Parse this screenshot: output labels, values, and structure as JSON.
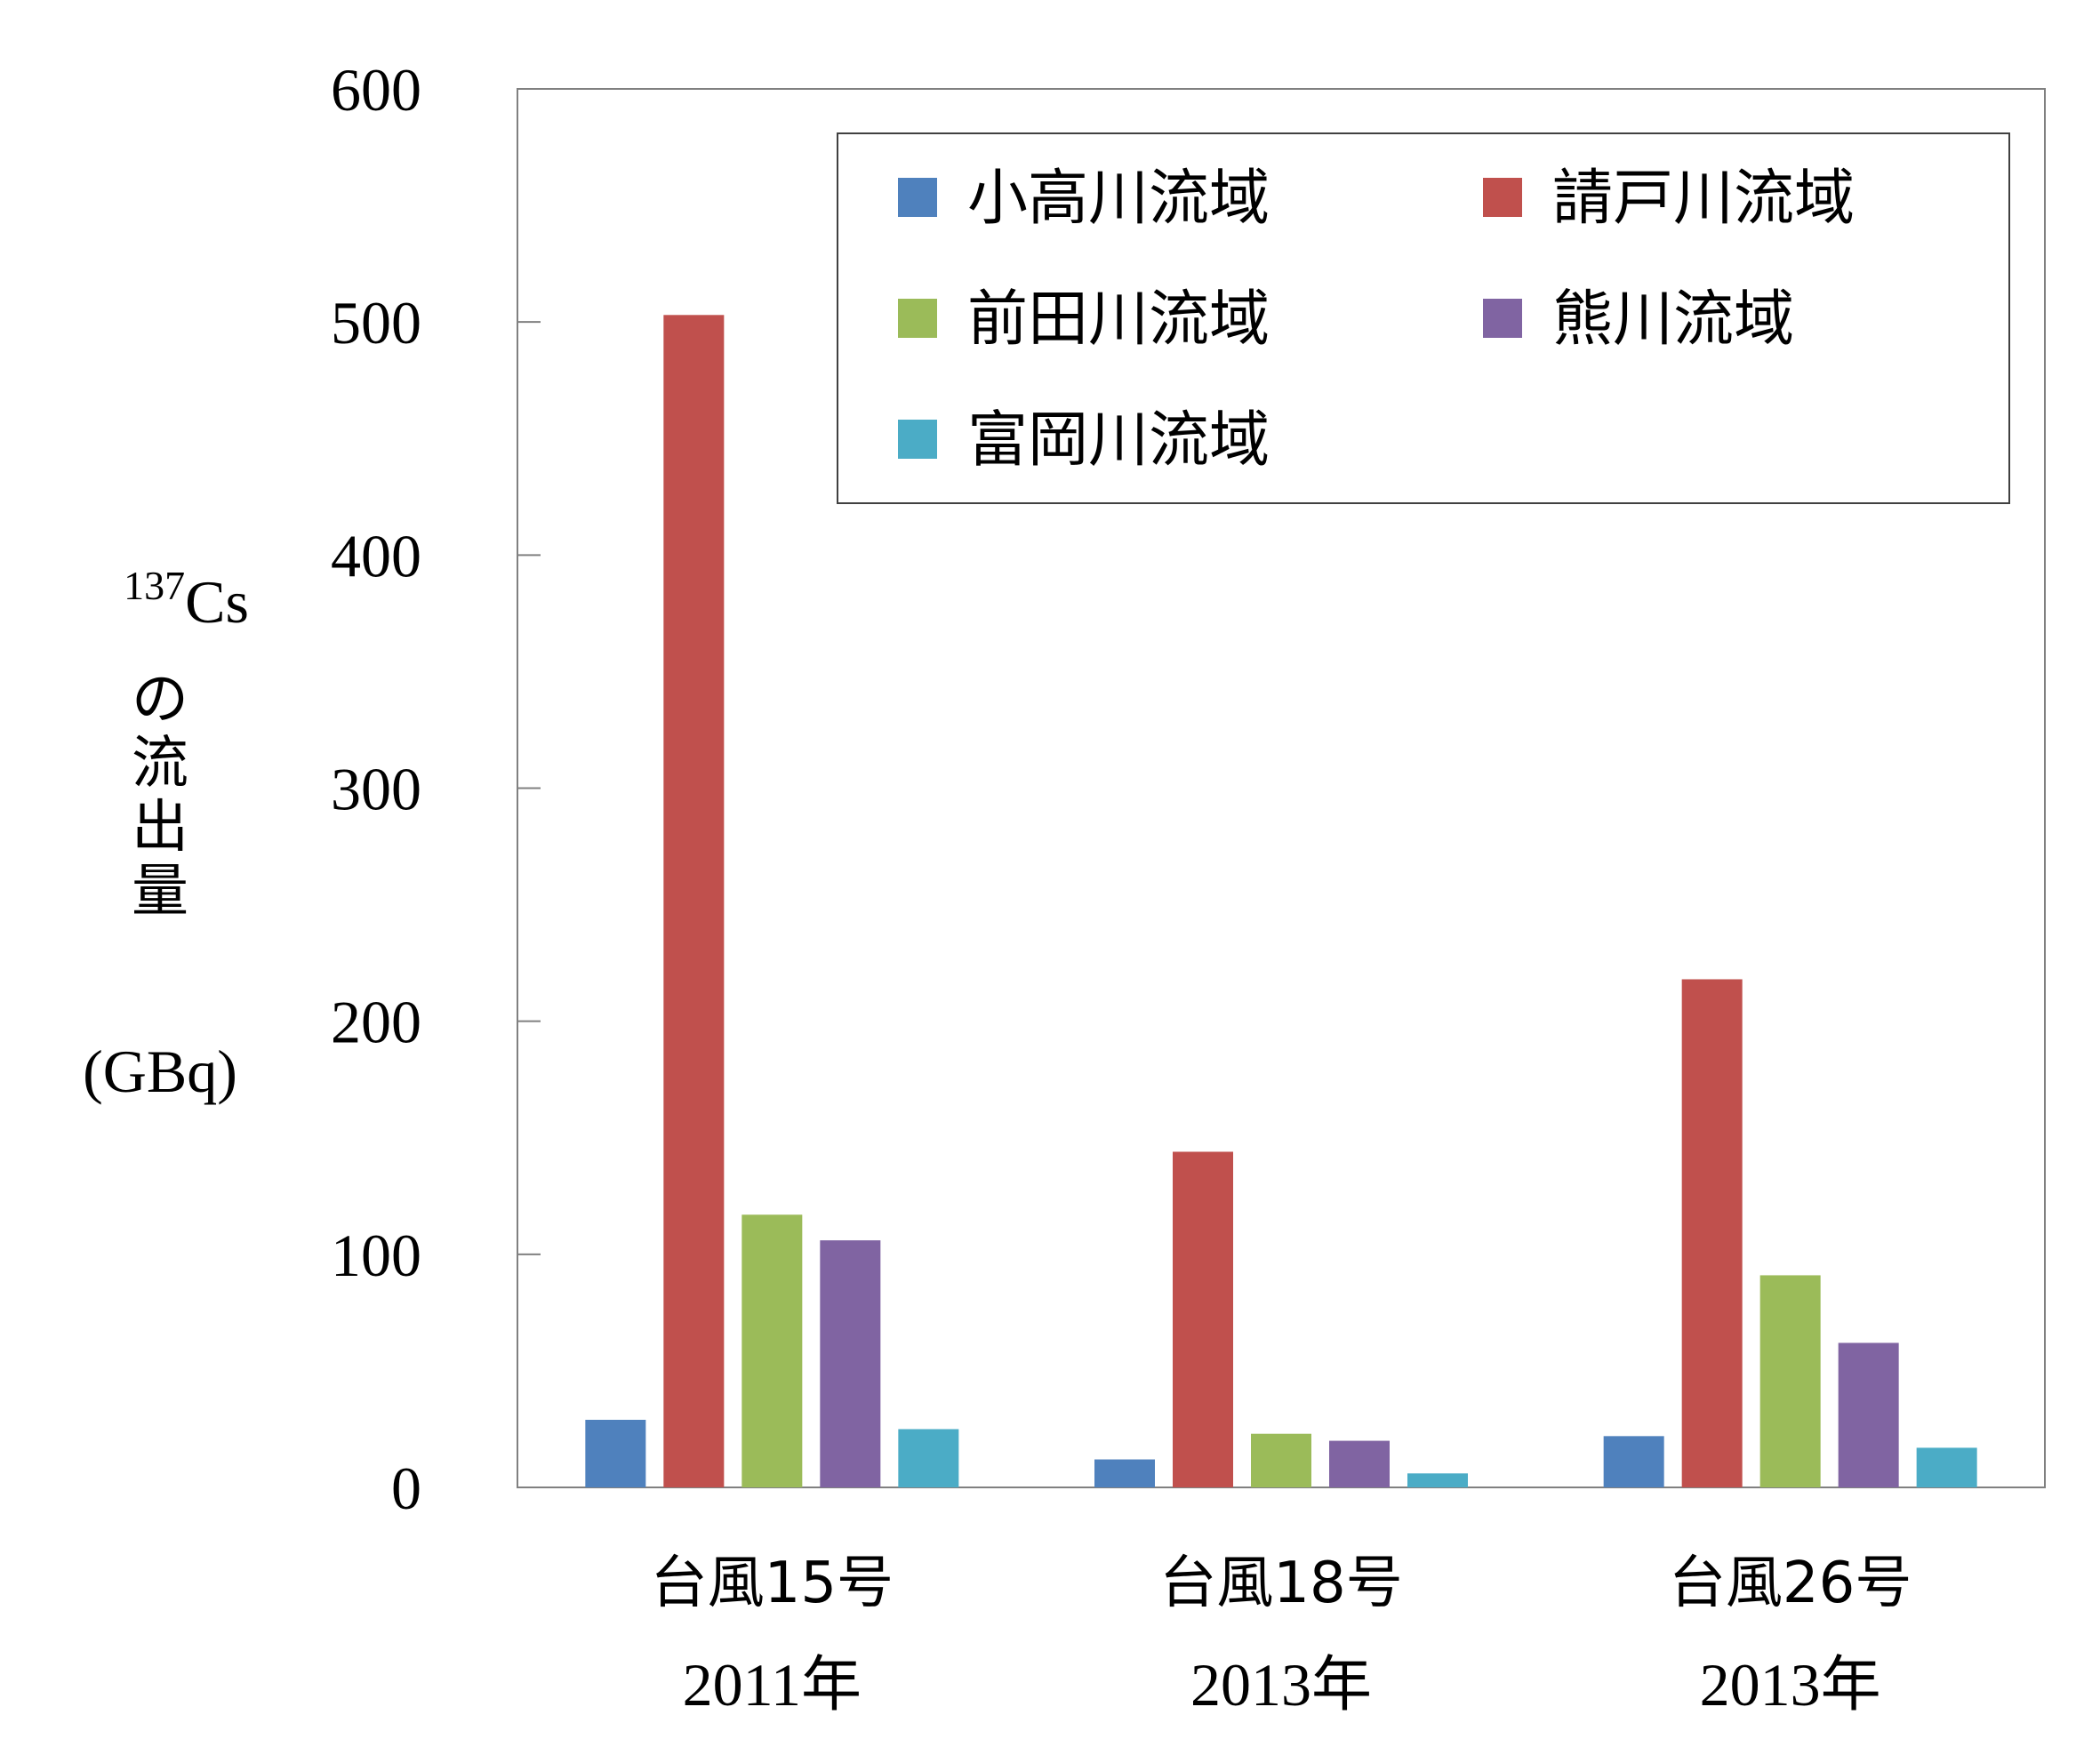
{
  "chart_data": {
    "type": "bar",
    "title": "",
    "ylabel": {
      "superscript": "137",
      "main": "Cs",
      "vertical_chars": [
        "の",
        "流",
        "出",
        "量"
      ],
      "unit": "(GBq)"
    },
    "xlabel": "",
    "ylim": [
      0,
      600
    ],
    "yticks": [
      0,
      100,
      200,
      300,
      400,
      500,
      600
    ],
    "grid": false,
    "legend_position": "top-right",
    "categories": [
      {
        "name": "台風15号",
        "year": "2011年"
      },
      {
        "name": "台風18号",
        "year": "2013年"
      },
      {
        "name": "台風26号",
        "year": "2013年"
      }
    ],
    "series": [
      {
        "name": "小高川流域",
        "color": "#4F81BD",
        "values": [
          29,
          12,
          22
        ]
      },
      {
        "name": "請戸川流域",
        "color": "#C0504D",
        "values": [
          503,
          144,
          218
        ]
      },
      {
        "name": "前田川流域",
        "color": "#9BBB59",
        "values": [
          117,
          23,
          91
        ]
      },
      {
        "name": "熊川流域",
        "color": "#8064A2",
        "values": [
          106,
          20,
          62
        ]
      },
      {
        "name": "富岡川流域",
        "color": "#4BACC6",
        "values": [
          25,
          6,
          17
        ]
      }
    ]
  }
}
